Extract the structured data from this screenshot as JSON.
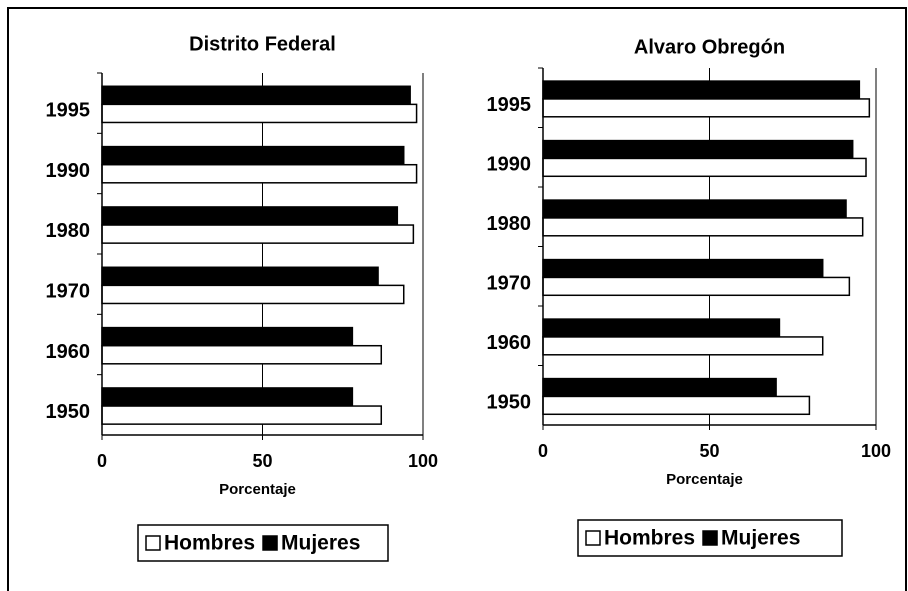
{
  "chart_data": [
    {
      "type": "bar",
      "orientation": "horizontal",
      "title": "Distrito Federal",
      "x_label": "Porcentaje",
      "categories": [
        "1995",
        "1990",
        "1980",
        "1970",
        "1960",
        "1950"
      ],
      "series": [
        {
          "name": "Hombres",
          "color": "#ffffff",
          "values": [
            98,
            98,
            97,
            94,
            87,
            87
          ]
        },
        {
          "name": "Mujeres",
          "color": "#000000",
          "values": [
            96,
            94,
            92,
            86,
            78,
            78
          ]
        }
      ],
      "xlim": [
        0,
        100
      ],
      "xticks": [
        0,
        50,
        100
      ],
      "grid": true,
      "legend": "bottom"
    },
    {
      "type": "bar",
      "orientation": "horizontal",
      "title": "Alvaro Obregón",
      "x_label": "Porcentaje",
      "categories": [
        "1995",
        "1990",
        "1980",
        "1970",
        "1960",
        "1950"
      ],
      "series": [
        {
          "name": "Hombres",
          "color": "#ffffff",
          "values": [
            98,
            97,
            96,
            92,
            84,
            80
          ]
        },
        {
          "name": "Mujeres",
          "color": "#000000",
          "values": [
            95,
            93,
            91,
            84,
            71,
            70
          ]
        }
      ],
      "xlim": [
        0,
        100
      ],
      "xticks": [
        0,
        50,
        100
      ],
      "grid": true,
      "legend": "bottom"
    }
  ]
}
